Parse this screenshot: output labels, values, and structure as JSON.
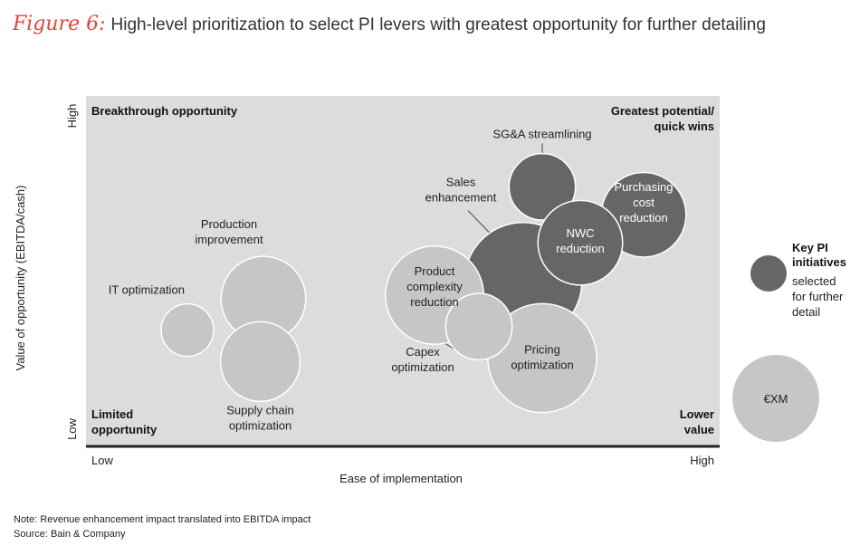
{
  "figure_label": "Figure 6:",
  "title": "High-level prioritization to select PI levers with greatest opportunity for further detailing",
  "notes": {
    "note": "Note: Revenue enhancement impact translated into EBITDA impact",
    "source": "Source: Bain & Company"
  },
  "colors": {
    "background": "#dcdcdc",
    "light_bubble": "#c6c6c6",
    "key_bubble": "#666666",
    "axis": "#222222"
  },
  "chart_data": {
    "type": "bubble",
    "xlabel": "Ease of implementation",
    "ylabel": "Value of opportunity (EBITDA/cash)",
    "x_ticks": [
      "Low",
      "High"
    ],
    "y_ticks": [
      "Low",
      "High"
    ],
    "xlim": [
      0,
      100
    ],
    "ylim": [
      0,
      100
    ],
    "quadrants": {
      "top_left": [
        "Breakthrough opportunity"
      ],
      "top_right": [
        "Greatest potential/",
        "quick wins"
      ],
      "bottom_left": [
        "Limited",
        "opportunity"
      ],
      "bottom_right": [
        "Lower",
        "value"
      ]
    },
    "bubbles": [
      {
        "label": [
          "IT optimization"
        ],
        "x": 16,
        "y": 33,
        "size": 1.0,
        "key": false
      },
      {
        "label": [
          "Production",
          "improvement"
        ],
        "x": 28,
        "y": 42,
        "size": 2.6,
        "key": false
      },
      {
        "label": [
          "Supply chain",
          "optimization"
        ],
        "x": 27.5,
        "y": 24,
        "size": 2.3,
        "key": false
      },
      {
        "label": [
          "SG&A streamlining"
        ],
        "x": 72,
        "y": 74,
        "size": 1.6,
        "key": true
      },
      {
        "label": [
          "Sales",
          "enhancement"
        ],
        "x": 69,
        "y": 47,
        "size": 5.0,
        "key": true
      },
      {
        "label": [
          "Purchasing",
          "cost",
          "reduction"
        ],
        "x": 88,
        "y": 66,
        "size": 2.6,
        "key": true
      },
      {
        "label": [
          "NWC",
          "reduction"
        ],
        "x": 78,
        "y": 58,
        "size": 2.6,
        "key": true
      },
      {
        "label": [
          "Product",
          "complexity",
          "reduction"
        ],
        "x": 55,
        "y": 43,
        "size": 3.5,
        "key": false
      },
      {
        "label": [
          "Pricing",
          "optimization"
        ],
        "x": 72,
        "y": 25,
        "size": 4.3,
        "key": false
      },
      {
        "label": [
          "Capex",
          "optimization"
        ],
        "x": 62,
        "y": 34,
        "size": 1.6,
        "key": false
      }
    ],
    "legend": {
      "key_text": [
        "Key PI",
        "initiatives"
      ],
      "key_subtext": [
        "selected",
        "for further",
        "detail"
      ],
      "size_label": "€XM"
    }
  }
}
